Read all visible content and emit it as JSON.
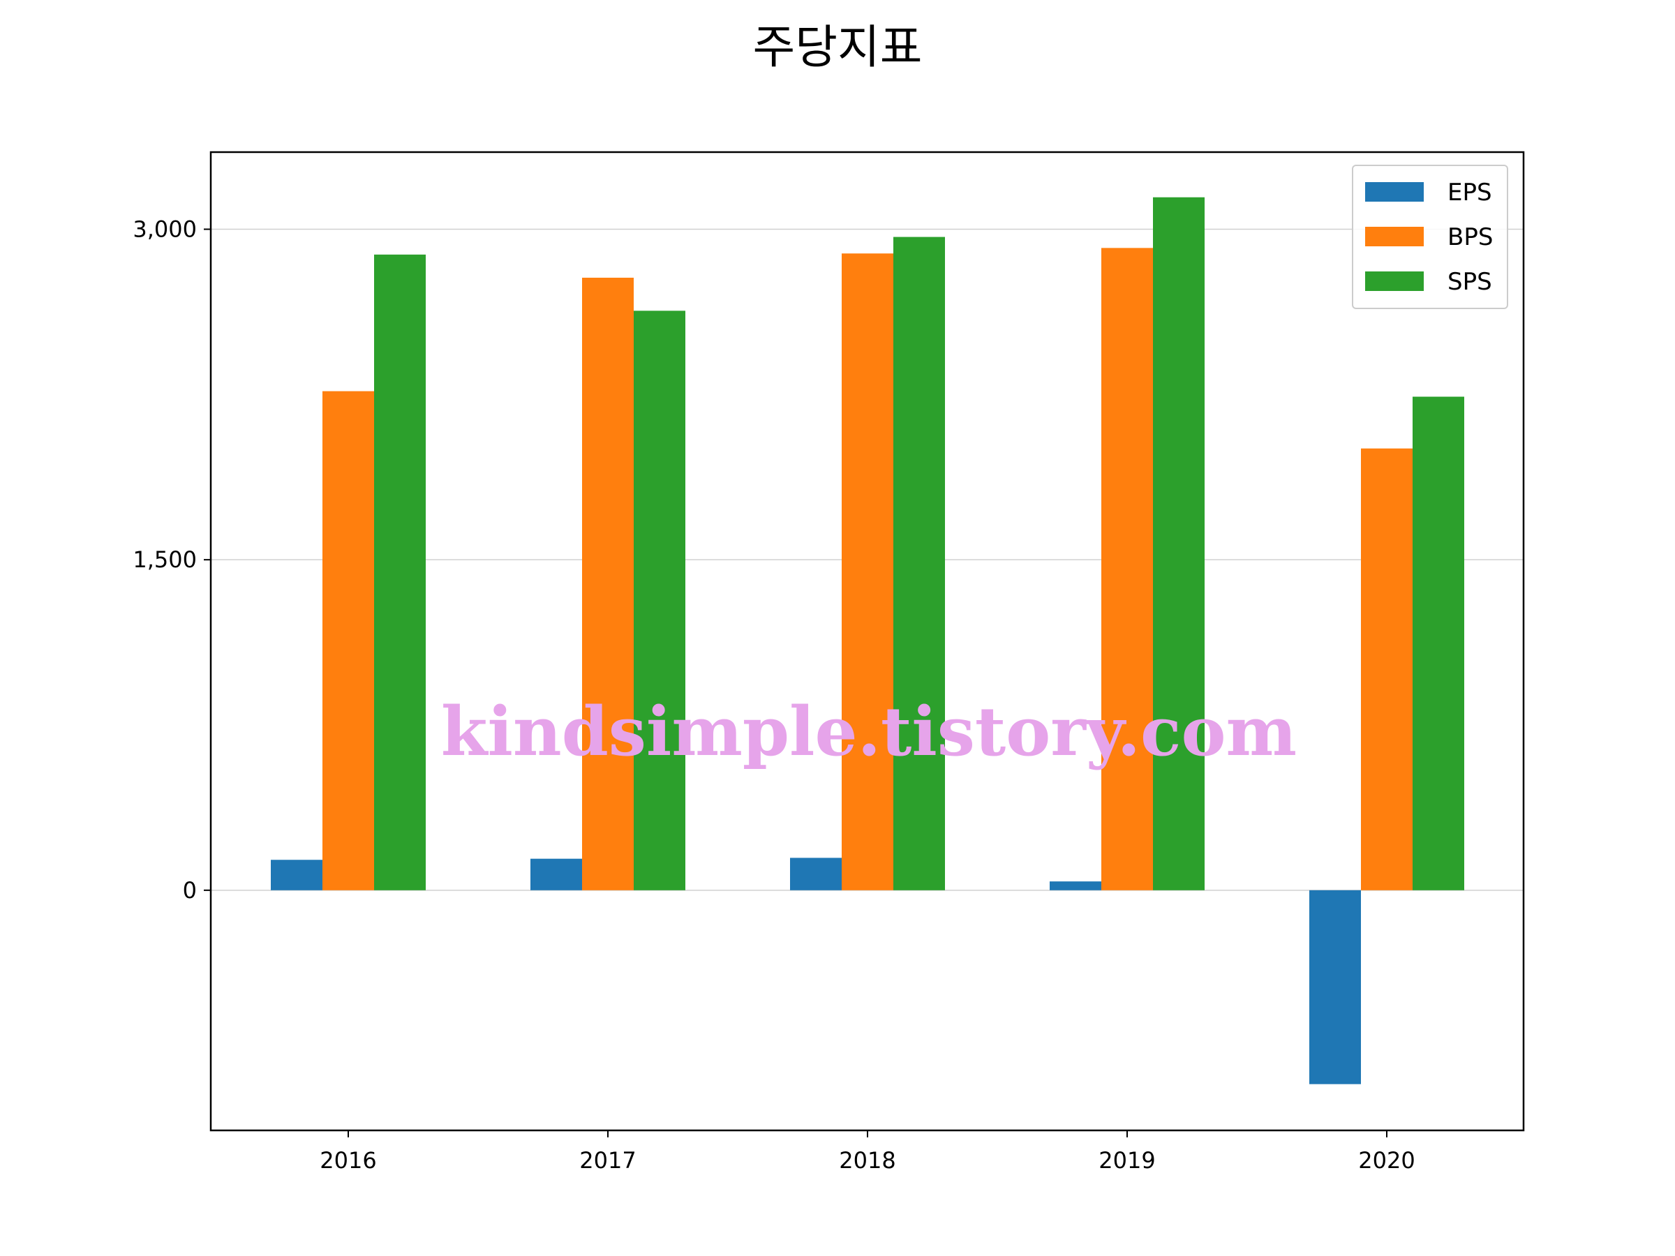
{
  "chart_data": {
    "type": "bar",
    "title": "주당지표",
    "xlabel": "",
    "ylabel": "",
    "categories": [
      "2016",
      "2017",
      "2018",
      "2019",
      "2020"
    ],
    "series": [
      {
        "name": "EPS",
        "color": "#1f77b4",
        "values": [
          138,
          143,
          147,
          40,
          -880
        ]
      },
      {
        "name": "BPS",
        "color": "#ff7f0e",
        "values": [
          2265,
          2780,
          2890,
          2915,
          2005
        ]
      },
      {
        "name": "SPS",
        "color": "#2ca02c",
        "values": [
          2885,
          2630,
          2965,
          3145,
          2240
        ]
      }
    ],
    "ylim": [
      -1090,
      3350
    ],
    "yticks": [
      0,
      1500,
      3000
    ],
    "ytick_labels": [
      "0",
      "1,500",
      "3,000"
    ],
    "grid": "y",
    "legend_position": "top-right"
  },
  "watermark": "kindsimple.tistory.com"
}
